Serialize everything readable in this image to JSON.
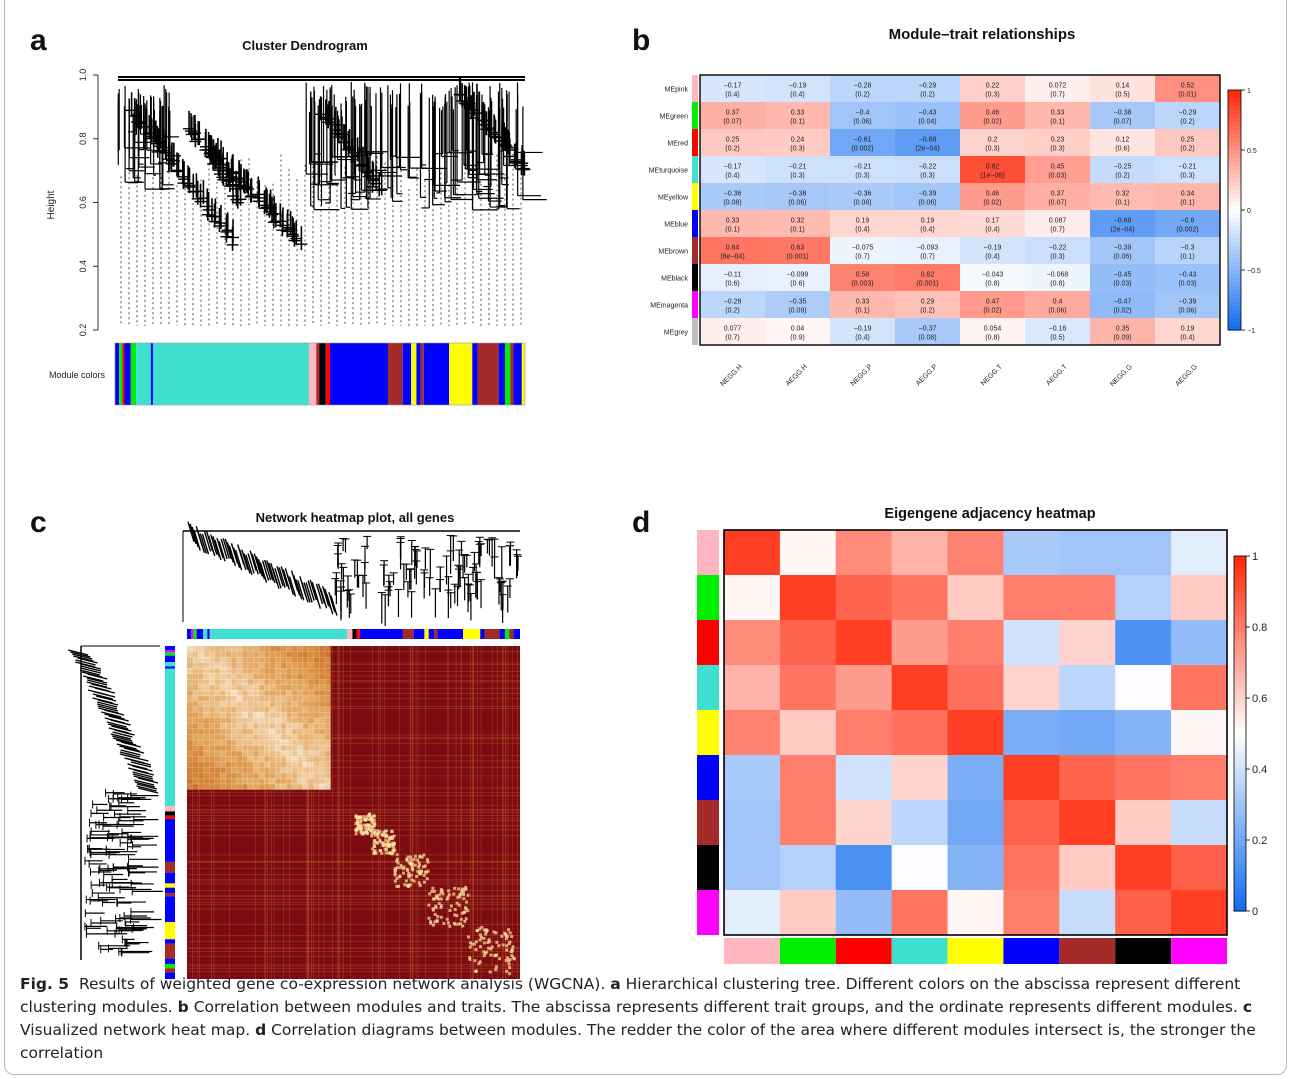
{
  "panels": {
    "a": {
      "letter": "a",
      "title": "Cluster Dendrogram",
      "ylabel": "Height",
      "yticks": [
        "0.2",
        "0.4",
        "0.6",
        "0.8",
        "1.0"
      ],
      "colorbar_label": "Module colors"
    },
    "b": {
      "letter": "b",
      "title": "Module–trait relationships"
    },
    "c": {
      "letter": "c",
      "title": "Network heatmap plot, all genes"
    },
    "d": {
      "letter": "d",
      "title": "Eigengene adjacency heatmap"
    }
  },
  "caption": {
    "fig_label": "Fig. 5",
    "intro": "Results of weighted gene co-expression network analysis (WGCNA).",
    "parts": [
      {
        "letter": "a",
        "text": "Hierarchical clustering tree. Different colors on the abscissa represent different clustering modules."
      },
      {
        "letter": "b",
        "text": "Correlation between modules and traits. The abscissa represents different trait groups, and the ordinate represents different modules."
      },
      {
        "letter": "c",
        "text": "Visualized network heat map."
      },
      {
        "letter": "d",
        "text": "Correlation diagrams between modules. The redder the color of the area where different modules intersect is, the stronger the correlation"
      }
    ]
  },
  "chart_data": [
    {
      "type": "heatmap",
      "panel": "b",
      "title": "Module–trait relationships",
      "rows": [
        "MEpink",
        "MEgreen",
        "MEred",
        "MEturquoise",
        "MEyellow",
        "MEblue",
        "MEbrown",
        "MEblack",
        "MEmagenta",
        "MEgrey"
      ],
      "row_colors": [
        "#ffb6c1",
        "#00ee00",
        "#ff0000",
        "#40e0d0",
        "#ffff00",
        "#0000ff",
        "#a52a2a",
        "#000000",
        "#ff00ff",
        "#bebebe"
      ],
      "columns": [
        "NEGG.H",
        "AEGG.H",
        "NEGG.P",
        "AEGG.P",
        "NEGG.T",
        "AEGG.T",
        "NEGG.G",
        "AEGG.G"
      ],
      "values": [
        [
          -0.17,
          -0.19,
          -0.28,
          -0.29,
          0.22,
          0.072,
          0.14,
          0.52
        ],
        [
          0.37,
          0.33,
          -0.4,
          -0.43,
          0.46,
          0.33,
          -0.38,
          -0.29
        ],
        [
          0.25,
          0.24,
          -0.61,
          -0.68,
          0.2,
          0.23,
          0.12,
          0.25
        ],
        [
          -0.17,
          -0.21,
          -0.21,
          -0.22,
          0.82,
          0.45,
          -0.25,
          -0.21
        ],
        [
          -0.36,
          -0.38,
          -0.36,
          -0.39,
          0.46,
          0.37,
          0.32,
          0.34
        ],
        [
          0.33,
          0.32,
          0.19,
          0.19,
          0.17,
          0.087,
          -0.68,
          -0.6
        ],
        [
          0.64,
          0.63,
          -0.075,
          -0.093,
          -0.19,
          -0.22,
          -0.39,
          -0.3
        ],
        [
          -0.11,
          -0.099,
          0.58,
          0.62,
          -0.043,
          -0.068,
          -0.45,
          -0.43
        ],
        [
          -0.28,
          -0.35,
          0.33,
          0.29,
          0.47,
          0.4,
          -0.47,
          -0.39
        ],
        [
          0.077,
          0.04,
          -0.19,
          -0.37,
          0.054,
          -0.16,
          0.35,
          0.19
        ]
      ],
      "labels": [
        [
          "−0.17",
          "−0.19",
          "−0.28",
          "−0.29",
          "0.22",
          "0.072",
          "0.14",
          "0.52"
        ],
        [
          "0.37",
          "0.33",
          "−0.4",
          "−0.43",
          "0.46",
          "0.33",
          "−0.38",
          "−0.29"
        ],
        [
          "0.25",
          "0.24",
          "−0.61",
          "−0.68",
          "0.2",
          "0.23",
          "0.12",
          "0.25"
        ],
        [
          "−0.17",
          "−0.21",
          "−0.21",
          "−0.22",
          "0.82",
          "0.45",
          "−0.25",
          "−0.21"
        ],
        [
          "−0.36",
          "−0.38",
          "−0.36",
          "−0.39",
          "0.46",
          "0.37",
          "0.32",
          "0.34"
        ],
        [
          "0.33",
          "0.32",
          "0.19",
          "0.19",
          "0.17",
          "0.087",
          "−0.68",
          "−0.6"
        ],
        [
          "0.64",
          "0.63",
          "−0.075",
          "−0.093",
          "−0.19",
          "−0.22",
          "−0.39",
          "−0.3"
        ],
        [
          "−0.11",
          "−0.099",
          "0.58",
          "0.62",
          "−0.043",
          "−0.068",
          "−0.45",
          "−0.43"
        ],
        [
          "−0.28",
          "−0.35",
          "0.33",
          "0.29",
          "0.47",
          "0.4",
          "−0.47",
          "−0.39"
        ],
        [
          "0.077",
          "0.04",
          "−0.19",
          "−0.37",
          "0.054",
          "−0.16",
          "0.35",
          "0.19"
        ]
      ],
      "pvalues": [
        [
          "(0.4)",
          "(0.4)",
          "(0.2)",
          "(0.2)",
          "(0.3)",
          "(0.7)",
          "(0.5)",
          "(0.01)"
        ],
        [
          "(0.07)",
          "(0.1)",
          "(0.06)",
          "(0.04)",
          "(0.02)",
          "(0.1)",
          "(0.07)",
          "(0.2)"
        ],
        [
          "(0.2)",
          "(0.3)",
          "(0.002)",
          "(2e−04)",
          "(0.3)",
          "(0.3)",
          "(0.6)",
          "(0.2)"
        ],
        [
          "(0.4)",
          "(0.3)",
          "(0.3)",
          "(0.3)",
          "(1e−06)",
          "(0.03)",
          "(0.2)",
          "(0.3)"
        ],
        [
          "(0.08)",
          "(0.06)",
          "(0.08)",
          "(0.06)",
          "(0.02)",
          "(0.07)",
          "(0.1)",
          "(0.1)"
        ],
        [
          "(0.1)",
          "(0.1)",
          "(0.4)",
          "(0.4)",
          "(0.4)",
          "(0.7)",
          "(2e−04)",
          "(0.002)"
        ],
        [
          "(8e−04)",
          "(0.001)",
          "(0.7)",
          "(0.7)",
          "(0.4)",
          "(0.3)",
          "(0.06)",
          "(0.1)"
        ],
        [
          "(0.6)",
          "(0.6)",
          "(0.003)",
          "(0.001)",
          "(0.8)",
          "(0.8)",
          "(0.03)",
          "(0.03)"
        ],
        [
          "(0.2)",
          "(0.09)",
          "(0.1)",
          "(0.2)",
          "(0.02)",
          "(0.06)",
          "(0.02)",
          "(0.06)"
        ],
        [
          "(0.7)",
          "(0.9)",
          "(0.4)",
          "(0.08)",
          "(0.8)",
          "(0.5)",
          "(0.09)",
          "(0.4)"
        ]
      ],
      "colorbar": {
        "ticks": [
          "1",
          "0.5",
          "0",
          "−0.5",
          "−1"
        ],
        "range": [
          -1,
          1
        ]
      }
    },
    {
      "type": "heatmap",
      "panel": "d",
      "title": "Eigengene adjacency heatmap",
      "module_colors": [
        "#ffb6c1",
        "#00ee00",
        "#ff0000",
        "#40e0d0",
        "#ffff00",
        "#0000ff",
        "#a52a2a",
        "#000000",
        "#ff00ff"
      ],
      "values": [
        [
          0.95,
          0.52,
          0.77,
          0.68,
          0.79,
          0.32,
          0.3,
          0.3,
          0.44
        ],
        [
          0.52,
          0.95,
          0.86,
          0.82,
          0.62,
          0.8,
          0.8,
          0.34,
          0.62
        ],
        [
          0.77,
          0.86,
          0.95,
          0.73,
          0.8,
          0.4,
          0.6,
          0.12,
          0.27
        ],
        [
          0.68,
          0.82,
          0.73,
          0.95,
          0.83,
          0.6,
          0.36,
          0.49,
          0.82
        ],
        [
          0.79,
          0.62,
          0.8,
          0.83,
          0.95,
          0.22,
          0.2,
          0.24,
          0.52
        ],
        [
          0.32,
          0.8,
          0.4,
          0.6,
          0.22,
          0.95,
          0.86,
          0.82,
          0.8
        ],
        [
          0.3,
          0.8,
          0.6,
          0.36,
          0.2,
          0.86,
          0.95,
          0.62,
          0.38
        ],
        [
          0.3,
          0.34,
          0.12,
          0.49,
          0.24,
          0.82,
          0.62,
          0.95,
          0.87
        ],
        [
          0.44,
          0.62,
          0.27,
          0.82,
          0.52,
          0.8,
          0.38,
          0.87,
          0.95
        ]
      ],
      "colorbar": {
        "ticks": [
          "1",
          "0.8",
          "0.6",
          "0.4",
          "0.2",
          "0"
        ],
        "range": [
          0,
          1
        ]
      }
    }
  ]
}
